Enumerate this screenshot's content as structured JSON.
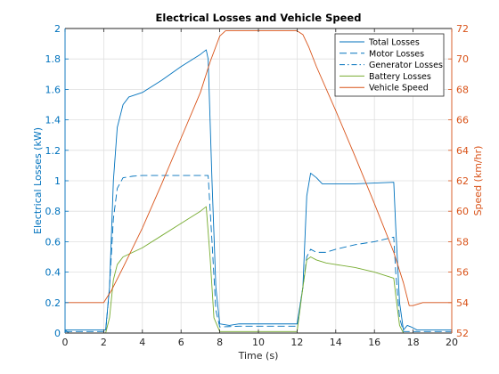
{
  "chart_data": {
    "type": "line",
    "title": "Electrical Losses and Vehicle Speed",
    "xlabel": "Time (s)",
    "ylabel_left": "Electrical Losses (kW)",
    "ylabel_right": "Speed (km/hr)",
    "xlim": [
      0,
      20
    ],
    "ylim_left": [
      0,
      2
    ],
    "ylim_right": [
      52,
      72
    ],
    "x_ticks": [
      "0",
      "2",
      "4",
      "6",
      "8",
      "10",
      "12",
      "14",
      "16",
      "18",
      "20"
    ],
    "y_left_ticks": [
      "0",
      "0.2",
      "0.4",
      "0.6",
      "0.8",
      "1",
      "1.2",
      "1.4",
      "1.6",
      "1.8",
      "2"
    ],
    "y_right_ticks": [
      "52",
      "54",
      "56",
      "58",
      "60",
      "62",
      "64",
      "66",
      "68",
      "70",
      "72"
    ],
    "grid": true,
    "legend_position": "top-right",
    "colors": {
      "left_axis": "#0072BD",
      "right_axis": "#D95319",
      "total": "#0072BD",
      "motor": "#0072BD",
      "generator": "#0072BD",
      "battery": "#77AC30",
      "speed": "#D95319"
    },
    "series": [
      {
        "name": "Total Losses",
        "axis": "left",
        "style": "solid",
        "points": [
          [
            0,
            0.02
          ],
          [
            2.1,
            0.02
          ],
          [
            2.3,
            0.3
          ],
          [
            2.5,
            1.0
          ],
          [
            2.7,
            1.35
          ],
          [
            3,
            1.5
          ],
          [
            3.3,
            1.55
          ],
          [
            4,
            1.58
          ],
          [
            5,
            1.66
          ],
          [
            6,
            1.75
          ],
          [
            7,
            1.83
          ],
          [
            7.3,
            1.86
          ],
          [
            7.4,
            1.8
          ],
          [
            7.6,
            1.0
          ],
          [
            7.8,
            0.3
          ],
          [
            8,
            0.06
          ],
          [
            8.5,
            0.05
          ],
          [
            9,
            0.06
          ],
          [
            10,
            0.06
          ],
          [
            11,
            0.06
          ],
          [
            12,
            0.06
          ],
          [
            12.3,
            0.3
          ],
          [
            12.5,
            0.9
          ],
          [
            12.7,
            1.05
          ],
          [
            13,
            1.02
          ],
          [
            13.3,
            0.98
          ],
          [
            14,
            0.98
          ],
          [
            15,
            0.98
          ],
          [
            16,
            0.985
          ],
          [
            17,
            0.99
          ],
          [
            17.1,
            0.7
          ],
          [
            17.3,
            0.2
          ],
          [
            17.5,
            0.02
          ],
          [
            17.7,
            0.05
          ],
          [
            17.9,
            0.04
          ],
          [
            18.2,
            0.02
          ],
          [
            20,
            0.02
          ]
        ]
      },
      {
        "name": "Motor Losses",
        "axis": "left",
        "style": "dashed",
        "points": [
          [
            0,
            0.01
          ],
          [
            2.1,
            0.01
          ],
          [
            2.3,
            0.3
          ],
          [
            2.5,
            0.75
          ],
          [
            2.7,
            0.95
          ],
          [
            3,
            1.02
          ],
          [
            3.5,
            1.03
          ],
          [
            4,
            1.035
          ],
          [
            5,
            1.035
          ],
          [
            6,
            1.035
          ],
          [
            7,
            1.035
          ],
          [
            7.4,
            1.035
          ],
          [
            7.6,
            0.6
          ],
          [
            7.8,
            0.15
          ],
          [
            8,
            0.04
          ],
          [
            9,
            0.045
          ],
          [
            10,
            0.045
          ],
          [
            11,
            0.045
          ],
          [
            12,
            0.045
          ],
          [
            12.3,
            0.3
          ],
          [
            12.5,
            0.5
          ],
          [
            12.7,
            0.55
          ],
          [
            13,
            0.53
          ],
          [
            13.5,
            0.53
          ],
          [
            14,
            0.55
          ],
          [
            15,
            0.58
          ],
          [
            16,
            0.6
          ],
          [
            17,
            0.63
          ],
          [
            17.1,
            0.4
          ],
          [
            17.3,
            0.1
          ],
          [
            17.5,
            0.01
          ],
          [
            20,
            0.01
          ]
        ]
      },
      {
        "name": "Generator Losses",
        "axis": "left",
        "style": "dashdot",
        "points": [
          [
            0,
            0.02
          ],
          [
            0.2,
            0.0
          ],
          [
            20,
            0.0
          ]
        ]
      },
      {
        "name": "Battery Losses",
        "axis": "left",
        "style": "solid",
        "points": [
          [
            0,
            0.0
          ],
          [
            2.1,
            0.0
          ],
          [
            2.3,
            0.1
          ],
          [
            2.5,
            0.35
          ],
          [
            2.7,
            0.45
          ],
          [
            3,
            0.5
          ],
          [
            3.5,
            0.53
          ],
          [
            4,
            0.56
          ],
          [
            5,
            0.64
          ],
          [
            6,
            0.72
          ],
          [
            7,
            0.8
          ],
          [
            7.3,
            0.83
          ],
          [
            7.5,
            0.5
          ],
          [
            7.7,
            0.1
          ],
          [
            8,
            0.01
          ],
          [
            12,
            0.01
          ],
          [
            12.3,
            0.3
          ],
          [
            12.5,
            0.48
          ],
          [
            12.7,
            0.5
          ],
          [
            13,
            0.48
          ],
          [
            13.5,
            0.46
          ],
          [
            14,
            0.45
          ],
          [
            15,
            0.43
          ],
          [
            16,
            0.4
          ],
          [
            17,
            0.36
          ],
          [
            17.1,
            0.25
          ],
          [
            17.3,
            0.05
          ],
          [
            17.5,
            0.0
          ],
          [
            20,
            0.0
          ]
        ]
      },
      {
        "name": "Vehicle Speed",
        "axis": "right",
        "style": "solid",
        "points": [
          [
            0,
            54
          ],
          [
            2,
            54
          ],
          [
            2.4,
            54.8
          ],
          [
            3,
            56.3
          ],
          [
            4,
            58.9
          ],
          [
            5,
            61.8
          ],
          [
            6,
            64.8
          ],
          [
            7,
            67.8
          ],
          [
            7.5,
            69.8
          ],
          [
            8,
            71.5
          ],
          [
            8.3,
            71.85
          ],
          [
            9,
            71.85
          ],
          [
            10,
            71.85
          ],
          [
            11,
            71.85
          ],
          [
            12,
            71.85
          ],
          [
            12.3,
            71.6
          ],
          [
            12.6,
            70.8
          ],
          [
            13,
            69.5
          ],
          [
            14,
            66.6
          ],
          [
            15,
            63.6
          ],
          [
            16,
            60.5
          ],
          [
            17,
            57.3
          ],
          [
            17.5,
            55.3
          ],
          [
            17.8,
            53.8
          ],
          [
            18,
            53.8
          ],
          [
            18.5,
            54.0
          ],
          [
            19,
            54.0
          ],
          [
            20,
            54.0
          ]
        ]
      }
    ]
  }
}
